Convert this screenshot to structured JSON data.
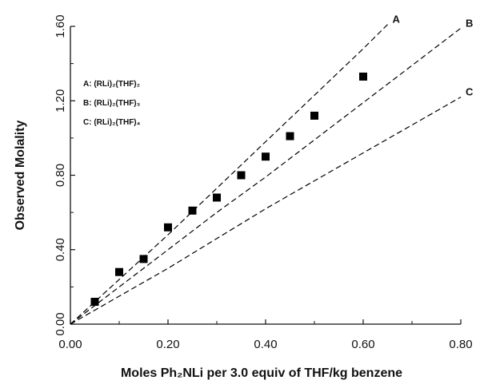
{
  "chart_data": {
    "type": "scatter",
    "xlabel": "Moles Ph₂NLi per 3.0 equiv of THF/kg benzene",
    "ylabel": "Observed Molality",
    "xlim": [
      0.0,
      0.8
    ],
    "ylim": [
      0.0,
      1.6
    ],
    "x_ticks": [
      "0.00",
      "0.20",
      "0.40",
      "0.60",
      "0.80"
    ],
    "y_ticks": [
      "0.00",
      "0.40",
      "0.80",
      "1.20",
      "1.60"
    ],
    "grid": false,
    "legend": {
      "placement": "upper-left",
      "entries": [
        {
          "key": "A",
          "label": "A: (RLi)₂(THF)₂"
        },
        {
          "key": "B",
          "label": "B: (RLi)₂(THF)₃"
        },
        {
          "key": "C",
          "label": "C: (RLi)₂(THF)₄"
        }
      ]
    },
    "series": [
      {
        "name": "observed",
        "style": "square-marker",
        "color": "#000000",
        "x": [
          0.05,
          0.1,
          0.15,
          0.2,
          0.25,
          0.3,
          0.35,
          0.4,
          0.45,
          0.5,
          0.6
        ],
        "y": [
          0.12,
          0.28,
          0.35,
          0.52,
          0.61,
          0.68,
          0.8,
          0.9,
          1.01,
          1.12,
          1.33
        ]
      },
      {
        "name": "A",
        "style": "dashed-line",
        "color": "#000000",
        "x": [
          0.0,
          0.1,
          0.2,
          0.3,
          0.4,
          0.5,
          0.6,
          0.65
        ],
        "y": [
          0.0,
          0.24,
          0.48,
          0.73,
          0.98,
          1.23,
          1.48,
          1.61
        ]
      },
      {
        "name": "B",
        "style": "dashed-line",
        "color": "#000000",
        "x": [
          0.0,
          0.1,
          0.2,
          0.3,
          0.4,
          0.5,
          0.6,
          0.7,
          0.8
        ],
        "y": [
          0.0,
          0.2,
          0.4,
          0.6,
          0.79,
          0.99,
          1.19,
          1.39,
          1.59
        ]
      },
      {
        "name": "C",
        "style": "dashed-line",
        "color": "#000000",
        "x": [
          0.0,
          0.1,
          0.2,
          0.3,
          0.4,
          0.5,
          0.6,
          0.7,
          0.8
        ],
        "y": [
          0.0,
          0.15,
          0.3,
          0.46,
          0.62,
          0.77,
          0.92,
          1.07,
          1.22
        ]
      }
    ]
  }
}
